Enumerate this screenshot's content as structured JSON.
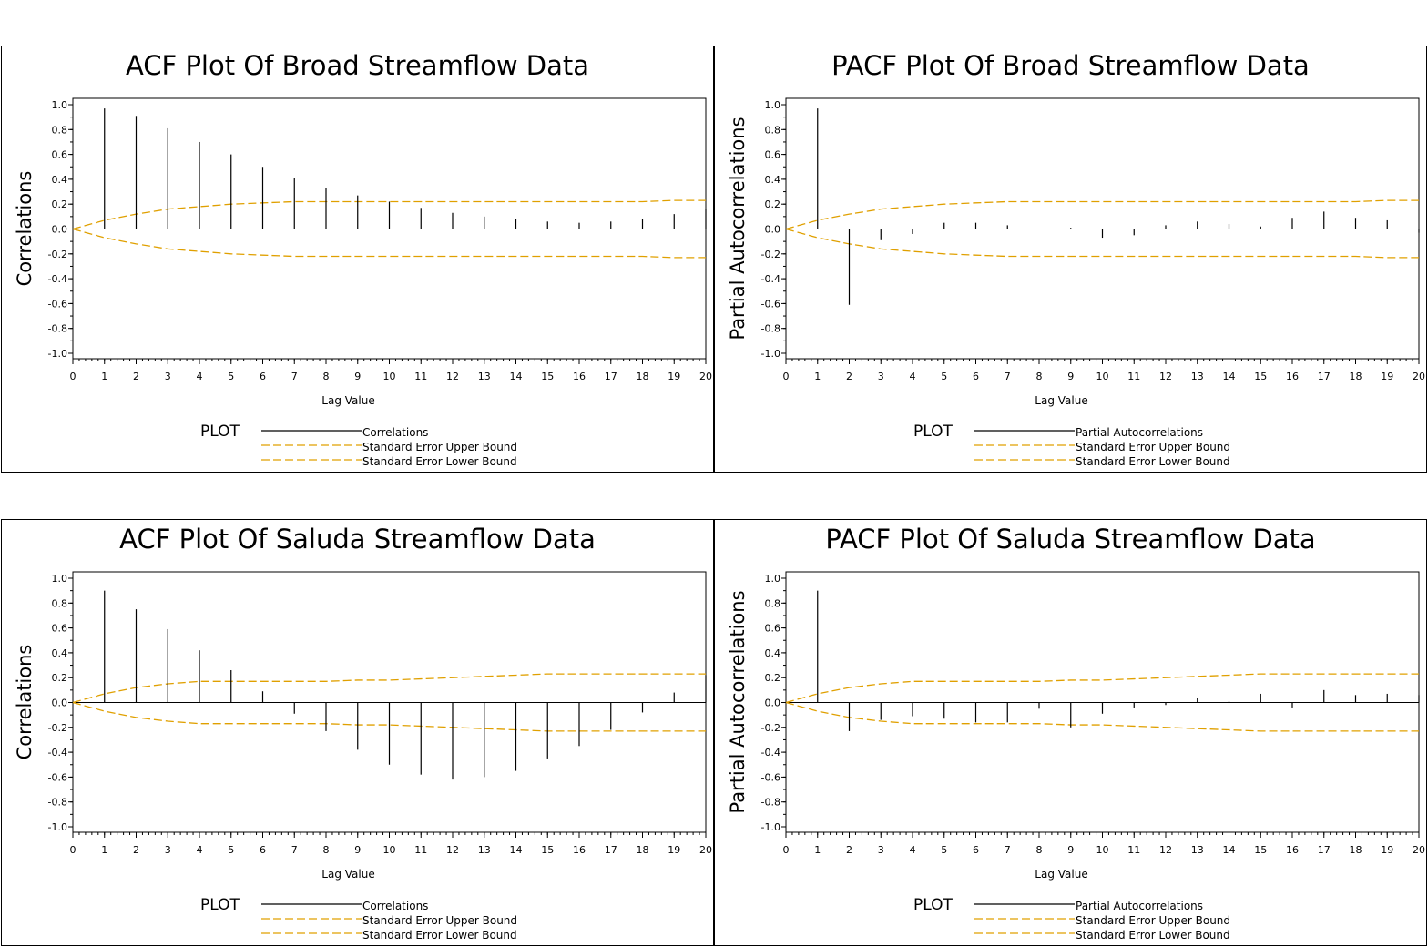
{
  "chart_data": [
    {
      "type": "bar",
      "title": "ACF Plot Of Broad Streamflow Data",
      "xlabel": "Lag Value",
      "ylabel": "Correlations",
      "xlim": [
        0,
        20
      ],
      "ylim": [
        -1.0,
        1.0
      ],
      "x_ticks": [
        "0",
        "1",
        "2",
        "3",
        "4",
        "5",
        "6",
        "7",
        "8",
        "9",
        "10",
        "11",
        "12",
        "13",
        "14",
        "15",
        "16",
        "17",
        "18",
        "19",
        "20"
      ],
      "y_ticks": [
        "1.0",
        "0.8",
        "0.6",
        "0.4",
        "0.2",
        "0.0",
        "-0.2",
        "-0.4",
        "-0.6",
        "-0.8",
        "-1.0"
      ],
      "grid": false,
      "legend": {
        "title": "PLOT",
        "entries": [
          "Correlations",
          "Standard Error Upper Bound",
          "Standard Error Lower Bound"
        ]
      },
      "x": [
        1,
        2,
        3,
        4,
        5,
        6,
        7,
        8,
        9,
        10,
        11,
        12,
        13,
        14,
        15,
        16,
        17,
        18,
        19,
        20
      ],
      "values": [
        0.97,
        0.91,
        0.81,
        0.7,
        0.6,
        0.5,
        0.41,
        0.33,
        0.27,
        0.22,
        0.17,
        0.13,
        0.1,
        0.08,
        0.06,
        0.05,
        0.06,
        0.08,
        0.12,
        0.16
      ],
      "bound_x": [
        0,
        1,
        2,
        3,
        4,
        5,
        6,
        7,
        8,
        9,
        10,
        11,
        12,
        13,
        14,
        15,
        16,
        17,
        18,
        19,
        20
      ],
      "upper_bound": [
        0.0,
        0.07,
        0.12,
        0.16,
        0.18,
        0.2,
        0.21,
        0.22,
        0.22,
        0.22,
        0.22,
        0.22,
        0.22,
        0.22,
        0.22,
        0.22,
        0.22,
        0.22,
        0.22,
        0.23,
        0.23
      ],
      "lower_bound": [
        0.0,
        -0.07,
        -0.12,
        -0.16,
        -0.18,
        -0.2,
        -0.21,
        -0.22,
        -0.22,
        -0.22,
        -0.22,
        -0.22,
        -0.22,
        -0.22,
        -0.22,
        -0.22,
        -0.22,
        -0.22,
        -0.22,
        -0.23,
        -0.23
      ],
      "series_color": "#000000",
      "bound_color": "#e0a000"
    },
    {
      "type": "bar",
      "title": "PACF Plot Of Broad Streamflow Data",
      "xlabel": "Lag Value",
      "ylabel": "Partial Autocorrelations",
      "xlim": [
        0,
        20
      ],
      "ylim": [
        -1.0,
        1.0
      ],
      "x_ticks": [
        "0",
        "1",
        "2",
        "3",
        "4",
        "5",
        "6",
        "7",
        "8",
        "9",
        "10",
        "11",
        "12",
        "13",
        "14",
        "15",
        "16",
        "17",
        "18",
        "19",
        "20"
      ],
      "y_ticks": [
        "1.0",
        "0.8",
        "0.6",
        "0.4",
        "0.2",
        "0.0",
        "-0.2",
        "-0.4",
        "-0.6",
        "-0.8",
        "-1.0"
      ],
      "grid": false,
      "legend": {
        "title": "PLOT",
        "entries": [
          "Partial Autocorrelations",
          "Standard Error Upper Bound",
          "Standard Error Lower Bound"
        ]
      },
      "x": [
        1,
        2,
        3,
        4,
        5,
        6,
        7,
        8,
        9,
        10,
        11,
        12,
        13,
        14,
        15,
        16,
        17,
        18,
        19,
        20
      ],
      "values": [
        0.97,
        -0.61,
        -0.09,
        -0.04,
        0.05,
        0.05,
        0.03,
        0.0,
        0.01,
        -0.07,
        -0.05,
        0.03,
        0.06,
        0.04,
        0.02,
        0.09,
        0.14,
        0.09,
        0.07,
        -0.03
      ],
      "bound_x": [
        0,
        1,
        2,
        3,
        4,
        5,
        6,
        7,
        8,
        9,
        10,
        11,
        12,
        13,
        14,
        15,
        16,
        17,
        18,
        19,
        20
      ],
      "upper_bound": [
        0.0,
        0.07,
        0.12,
        0.16,
        0.18,
        0.2,
        0.21,
        0.22,
        0.22,
        0.22,
        0.22,
        0.22,
        0.22,
        0.22,
        0.22,
        0.22,
        0.22,
        0.22,
        0.22,
        0.23,
        0.23
      ],
      "lower_bound": [
        0.0,
        -0.07,
        -0.12,
        -0.16,
        -0.18,
        -0.2,
        -0.21,
        -0.22,
        -0.22,
        -0.22,
        -0.22,
        -0.22,
        -0.22,
        -0.22,
        -0.22,
        -0.22,
        -0.22,
        -0.22,
        -0.22,
        -0.23,
        -0.23
      ],
      "series_color": "#000000",
      "bound_color": "#e0a000"
    },
    {
      "type": "bar",
      "title": "ACF Plot Of Saluda Streamflow Data",
      "xlabel": "Lag Value",
      "ylabel": "Correlations",
      "xlim": [
        0,
        20
      ],
      "ylim": [
        -1.0,
        1.0
      ],
      "x_ticks": [
        "0",
        "1",
        "2",
        "3",
        "4",
        "5",
        "6",
        "7",
        "8",
        "9",
        "10",
        "11",
        "12",
        "13",
        "14",
        "15",
        "16",
        "17",
        "18",
        "19",
        "20"
      ],
      "y_ticks": [
        "1.0",
        "0.8",
        "0.6",
        "0.4",
        "0.2",
        "0.0",
        "-0.2",
        "-0.4",
        "-0.6",
        "-0.8",
        "-1.0"
      ],
      "grid": false,
      "legend": {
        "title": "PLOT",
        "entries": [
          "Correlations",
          "Standard Error Upper Bound",
          "Standard Error Lower Bound"
        ]
      },
      "x": [
        1,
        2,
        3,
        4,
        5,
        6,
        7,
        8,
        9,
        10,
        11,
        12,
        13,
        14,
        15,
        16,
        17,
        18,
        19,
        20
      ],
      "values": [
        0.9,
        0.75,
        0.59,
        0.42,
        0.26,
        0.09,
        -0.09,
        -0.23,
        -0.38,
        -0.5,
        -0.58,
        -0.62,
        -0.6,
        -0.55,
        -0.45,
        -0.35,
        -0.22,
        -0.08,
        0.08,
        0.22
      ],
      "bound_x": [
        0,
        1,
        2,
        3,
        4,
        5,
        6,
        7,
        8,
        9,
        10,
        11,
        12,
        13,
        14,
        15,
        16,
        17,
        18,
        19,
        20
      ],
      "upper_bound": [
        0.0,
        0.07,
        0.12,
        0.15,
        0.17,
        0.17,
        0.17,
        0.17,
        0.17,
        0.18,
        0.18,
        0.19,
        0.2,
        0.21,
        0.22,
        0.23,
        0.23,
        0.23,
        0.23,
        0.23,
        0.23
      ],
      "lower_bound": [
        0.0,
        -0.07,
        -0.12,
        -0.15,
        -0.17,
        -0.17,
        -0.17,
        -0.17,
        -0.17,
        -0.18,
        -0.18,
        -0.19,
        -0.2,
        -0.21,
        -0.22,
        -0.23,
        -0.23,
        -0.23,
        -0.23,
        -0.23,
        -0.23
      ],
      "series_color": "#000000",
      "bound_color": "#e0a000"
    },
    {
      "type": "bar",
      "title": "PACF Plot Of Saluda Streamflow Data",
      "xlabel": "Lag Value",
      "ylabel": "Partial Autocorrelations",
      "xlim": [
        0,
        20
      ],
      "ylim": [
        -1.0,
        1.0
      ],
      "x_ticks": [
        "0",
        "1",
        "2",
        "3",
        "4",
        "5",
        "6",
        "7",
        "8",
        "9",
        "10",
        "11",
        "12",
        "13",
        "14",
        "15",
        "16",
        "17",
        "18",
        "19",
        "20"
      ],
      "y_ticks": [
        "1.0",
        "0.8",
        "0.6",
        "0.4",
        "0.2",
        "0.0",
        "-0.2",
        "-0.4",
        "-0.6",
        "-0.8",
        "-1.0"
      ],
      "grid": false,
      "legend": {
        "title": "PLOT",
        "entries": [
          "Partial Autocorrelations",
          "Standard Error Upper Bound",
          "Standard Error Lower Bound"
        ]
      },
      "x": [
        1,
        2,
        3,
        4,
        5,
        6,
        7,
        8,
        9,
        10,
        11,
        12,
        13,
        14,
        15,
        16,
        17,
        18,
        19,
        20
      ],
      "values": [
        0.9,
        -0.23,
        -0.14,
        -0.11,
        -0.13,
        -0.16,
        -0.16,
        -0.05,
        -0.2,
        -0.09,
        -0.04,
        -0.02,
        0.04,
        0.01,
        0.07,
        -0.04,
        0.1,
        0.06,
        0.07,
        0.06
      ],
      "bound_x": [
        0,
        1,
        2,
        3,
        4,
        5,
        6,
        7,
        8,
        9,
        10,
        11,
        12,
        13,
        14,
        15,
        16,
        17,
        18,
        19,
        20
      ],
      "upper_bound": [
        0.0,
        0.07,
        0.12,
        0.15,
        0.17,
        0.17,
        0.17,
        0.17,
        0.17,
        0.18,
        0.18,
        0.19,
        0.2,
        0.21,
        0.22,
        0.23,
        0.23,
        0.23,
        0.23,
        0.23,
        0.23
      ],
      "lower_bound": [
        0.0,
        -0.07,
        -0.12,
        -0.15,
        -0.17,
        -0.17,
        -0.17,
        -0.17,
        -0.17,
        -0.18,
        -0.18,
        -0.19,
        -0.2,
        -0.21,
        -0.22,
        -0.23,
        -0.23,
        -0.23,
        -0.23,
        -0.23,
        -0.23
      ],
      "series_color": "#000000",
      "bound_color": "#e0a000"
    }
  ]
}
